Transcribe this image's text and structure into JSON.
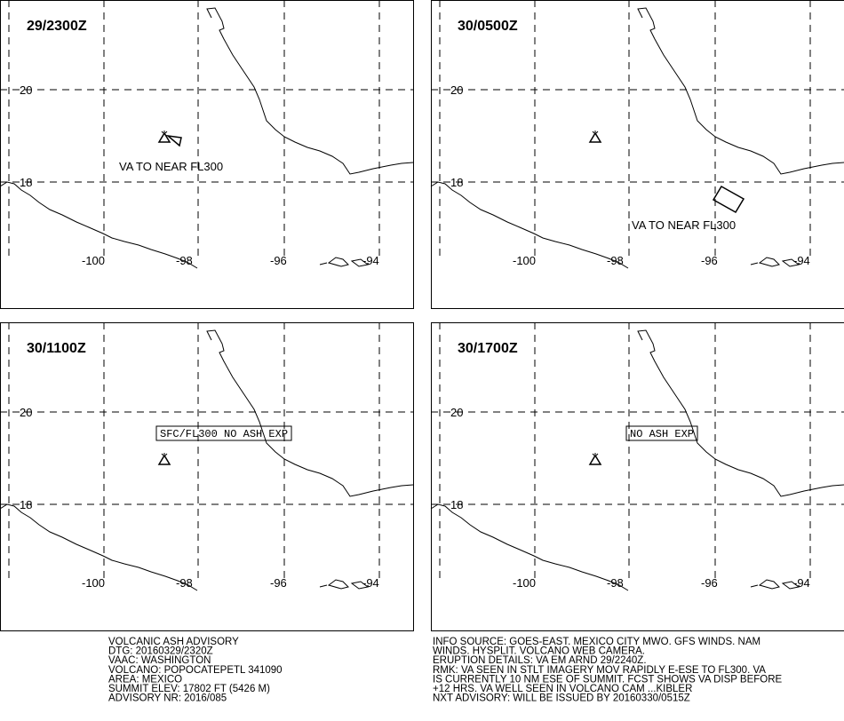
{
  "panels": [
    {
      "time": "29/2300Z",
      "annotation": "VA TO NEAR FL300",
      "boxed": false
    },
    {
      "time": "30/0500Z",
      "annotation": "VA TO NEAR FL300",
      "boxed": false
    },
    {
      "time": "30/1100Z",
      "annotation": "SFC/FL300 NO ASH EXP",
      "boxed": true
    },
    {
      "time": "30/1700Z",
      "annotation": "NO ASH EXP",
      "boxed": true
    }
  ],
  "grid_labels": {
    "lat": [
      "20",
      "18"
    ],
    "lon": [
      "-100",
      "-98",
      "-96",
      "-94"
    ]
  },
  "advisory_left": [
    "VOLCANIC ASH ADVISORY",
    "DTG: 20160329/2320Z",
    "VAAC: WASHINGTON",
    "VOLCANO: POPOCATEPETL 341090",
    "AREA: MEXICO",
    "SUMMIT ELEV: 17802 FT (5426 M)",
    "ADVISORY NR: 2016/085"
  ],
  "advisory_right": [
    "INFO SOURCE: GOES-EAST. MEXICO CITY MWO. GFS WINDS. NAM",
    "WINDS. HYSPLIT. VOLCANO WEB CAMERA.",
    "ERUPTION DETAILS: VA EM ARND 29/2240Z.",
    "RMK: VA SEEN IN STLT IMAGERY MOV RAPIDLY E-ESE TO FL300. VA",
    "IS CURRENTLY 10 NM ESE OF SUMMIT. FCST SHOWS VA DISP BEFORE",
    "+12 HRS. VA WELL SEEN IN VOLCANO CAM ...KIBLER",
    "NXT ADVISORY: WILL BE ISSUED BY 20160330/0515Z"
  ]
}
